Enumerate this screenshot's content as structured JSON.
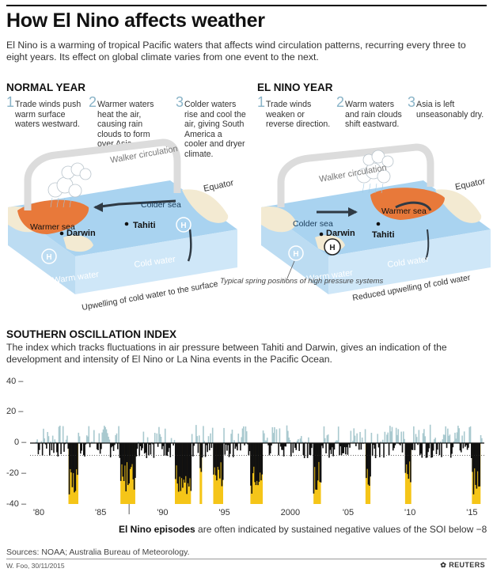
{
  "title": "How El Nino affects weather",
  "intro": "El Nino is a warming of tropical Pacific waters that affects wind circulation patterns, recurring every three to eight years. Its effect on global climate varies from one event to the next.",
  "normal_year": {
    "heading": "NORMAL YEAR",
    "steps": [
      {
        "num": "1",
        "text": "Trade winds push warm surface waters westward."
      },
      {
        "num": "2",
        "text": "Warmer waters heat the air, causing rain clouds to form over Asia."
      },
      {
        "num": "3",
        "text": "Colder waters rise and cool the air, giving South America a cooler and dryer climate."
      }
    ],
    "labels": {
      "walker": "Walker circulation",
      "equator": "Equator",
      "warmer_sea": "Warmer sea",
      "colder_sea": "Colder sea",
      "darwin": "Darwin",
      "tahiti": "Tahiti",
      "warm_water": "Warm water",
      "cold_water": "Cold water",
      "upwelling": "Upwelling of cold water to the surface"
    }
  },
  "el_nino_year": {
    "heading": "EL NINO YEAR",
    "steps": [
      {
        "num": "1",
        "text": "Trade winds weaken or reverse direction."
      },
      {
        "num": "2",
        "text": "Warm waters and rain clouds shift eastward."
      },
      {
        "num": "3",
        "text": "Asia is left unseasonably dry."
      }
    ],
    "labels": {
      "walker": "Walker circulation",
      "equator": "Equator",
      "warmer_sea": "Warmer sea",
      "colder_sea": "Colder sea",
      "darwin": "Darwin",
      "tahiti": "Tahiti",
      "warm_water": "Warm water",
      "cold_water": "Cold water",
      "reduced_upwelling": "Reduced upwelling of cold water",
      "high_pressure_note": "Typical spring positions of high pressure systems",
      "high_symbol": "H"
    }
  },
  "soi": {
    "heading": "SOUTHERN OSCILLATION INDEX",
    "description": "The index which tracks fluctuations in air pressure between Tahiti and Darwin, gives an indication of the development and intensity of El Nino or La Nina events in the Pacific Ocean.",
    "caption_bold": "El Nino episodes",
    "caption_rest": " are often indicated by sustained negative values of the SOI below −8"
  },
  "sources": "Sources: NOAA; Australia Bureau of Meteorology.",
  "credit": "W. Foo, 30/11/2015",
  "brand": "REUTERS",
  "colors": {
    "warm_sea": "#e8793a",
    "ocean_top": "#a9d3f0",
    "ocean_side": "#cfe7f8",
    "land": "#f3ead2",
    "arrow": "#2f3a44",
    "soi_positive": "#a9c9cf",
    "soi_negative": "#111111",
    "el_nino": "#f5c518",
    "accent_number": "#8ab4c8"
  },
  "chart_data": {
    "type": "bar",
    "title": "SOUTHERN OSCILLATION INDEX",
    "xlabel": "",
    "ylabel": "",
    "ylim": [
      -40,
      40
    ],
    "yticks": [
      40,
      20,
      0,
      -20,
      -40
    ],
    "xlim": [
      1979.5,
      2016.2
    ],
    "xtick_labels": [
      "'80",
      "'85",
      "'90",
      "'95",
      "2000",
      "'05",
      "'10",
      "'15"
    ],
    "xtick_years": [
      1980,
      1985,
      1990,
      1995,
      2000,
      2005,
      2010,
      2015
    ],
    "threshold": -8,
    "el_nino_episodes": [
      {
        "start": 1982.6,
        "end": 1983.4
      },
      {
        "start": 1986.8,
        "end": 1988.0
      },
      {
        "start": 1991.2,
        "end": 1992.5
      },
      {
        "start": 1993.2,
        "end": 1993.4
      },
      {
        "start": 1994.3,
        "end": 1995.1
      },
      {
        "start": 1997.3,
        "end": 1998.3
      },
      {
        "start": 2002.4,
        "end": 2003.0
      },
      {
        "start": 2006.6,
        "end": 2007.0
      },
      {
        "start": 2009.8,
        "end": 2010.3
      },
      {
        "start": 2015.2,
        "end": 2015.9
      }
    ],
    "soi_months": "monthly index values, approximately 1980-2015 (estimated from the bars)"
  }
}
